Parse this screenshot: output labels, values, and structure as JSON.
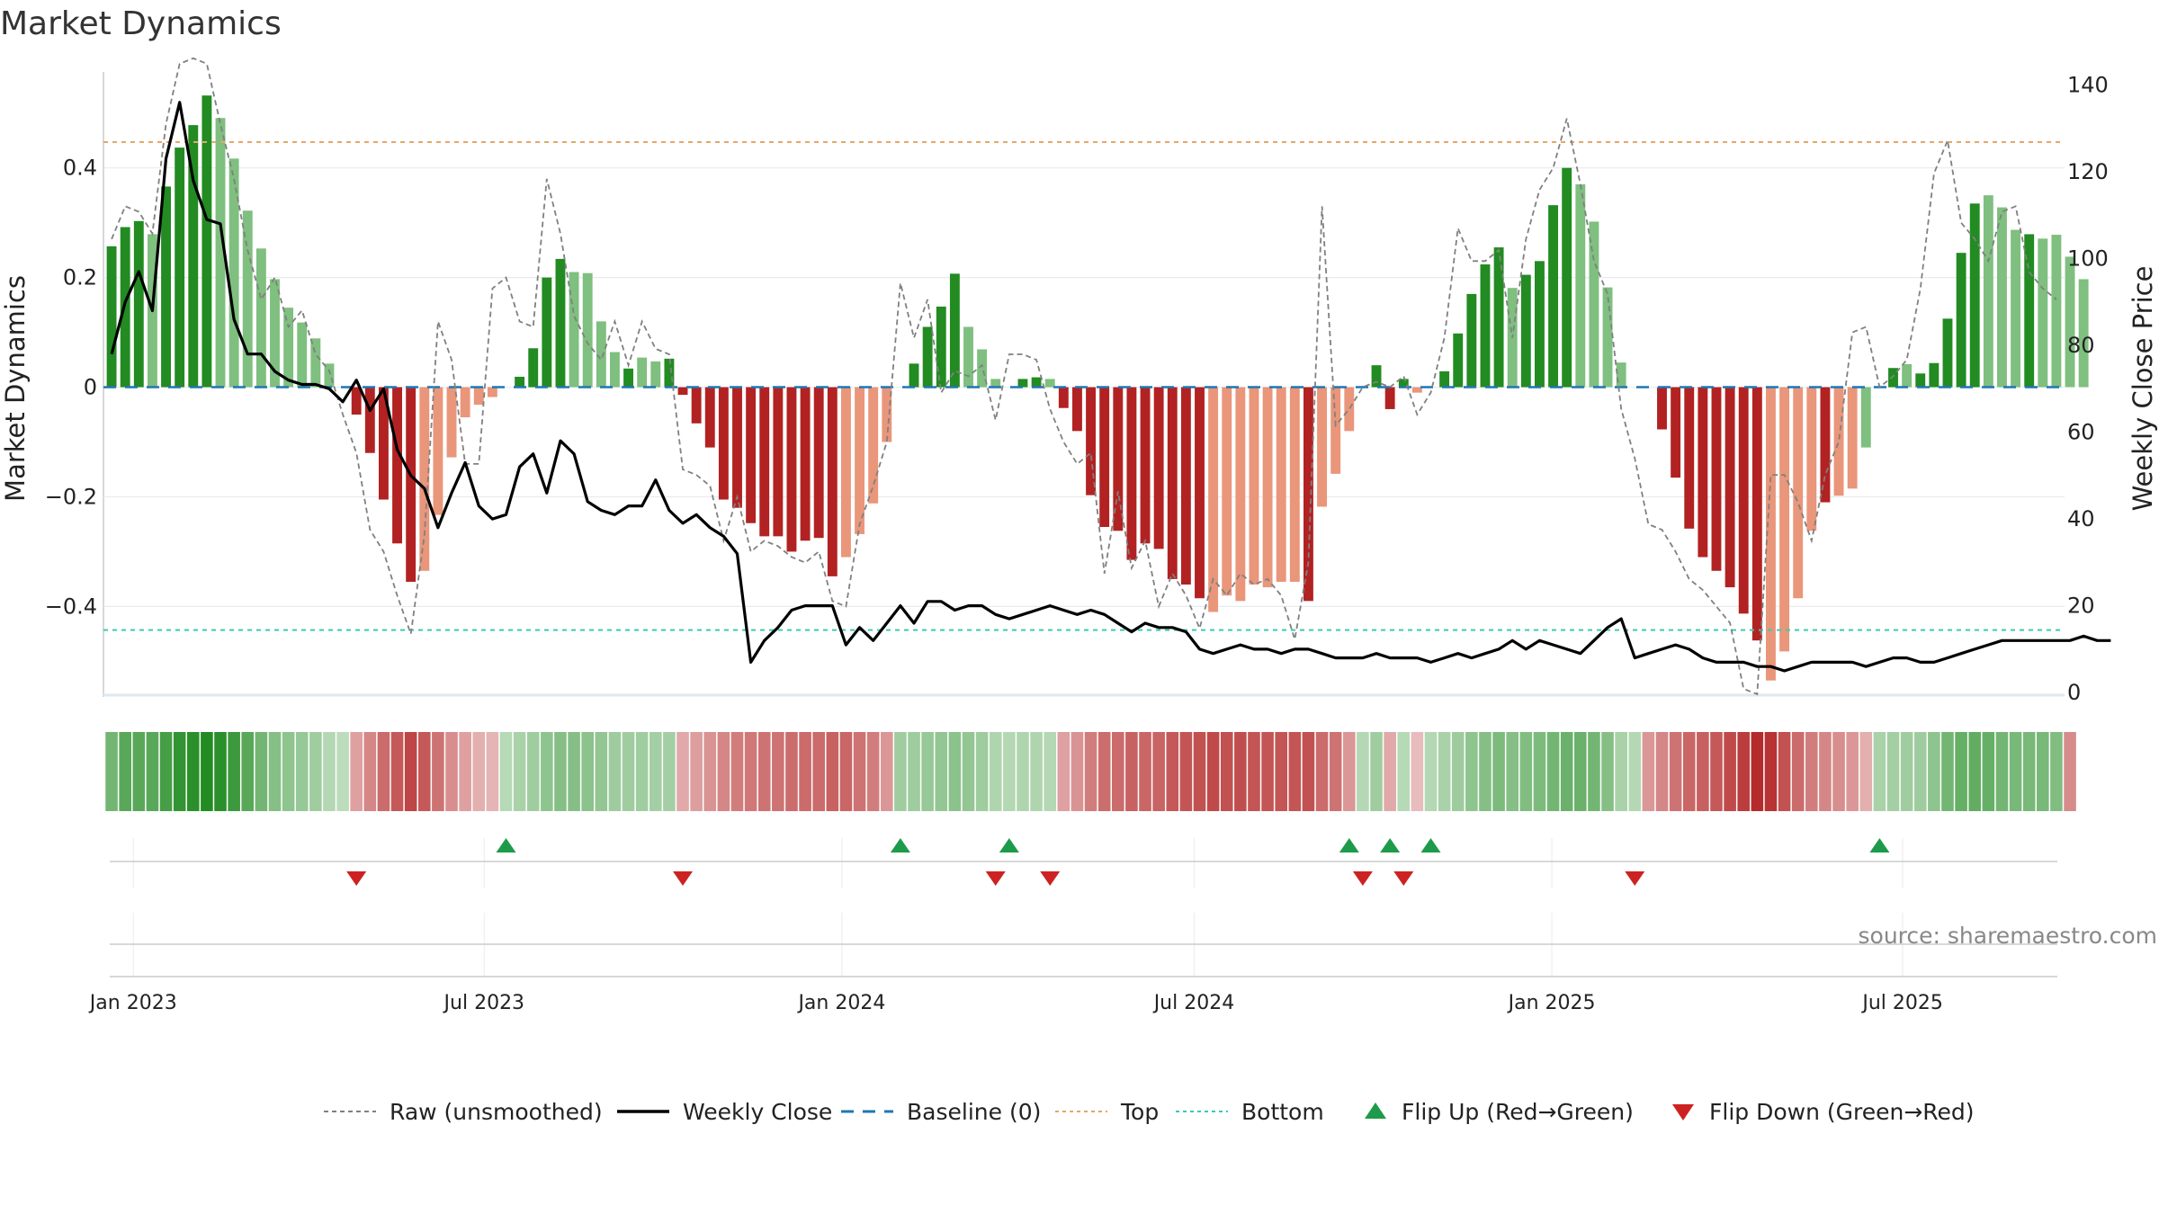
{
  "title": "Market Dynamics",
  "colors": {
    "green_dark": "#228b22",
    "green_light": "#7fbf7f",
    "red_dark": "#b22222",
    "red_light": "#e9967a",
    "close_line": "#000000",
    "raw_line": "#808080",
    "baseline": "#1f77b4",
    "top_line": "#e3a86b",
    "bottom_line": "#3cc9b4",
    "flip_up": "#1e9b4a",
    "flip_down": "#cc2222"
  },
  "chart_data": {
    "type": "bar",
    "title": "Market Dynamics",
    "ylabel": "Market Dynamics",
    "y2label": "Weekly Close Price",
    "ylim": [
      -0.565,
      0.575
    ],
    "y2lim": [
      -1,
      143
    ],
    "yticks": [
      0.4,
      0.2,
      0,
      -0.2,
      -0.4
    ],
    "ytick_labels": [
      "0.4",
      "0.2",
      "0",
      "−0.2",
      "−0.4"
    ],
    "y2ticks": [
      140,
      120,
      100,
      80,
      60,
      40,
      20,
      0
    ],
    "y2tick_labels": [
      "140",
      "120",
      "100",
      "80",
      "60",
      "40",
      "20",
      "0"
    ],
    "x_domain": [
      -0.6,
      143.6
    ],
    "x_ticks": [
      {
        "week": 1.6,
        "label": "Jan 2023"
      },
      {
        "week": 27.4,
        "label": "Jul 2023"
      },
      {
        "week": 53.7,
        "label": "Jan 2024"
      },
      {
        "week": 79.6,
        "label": "Jul 2024"
      },
      {
        "week": 105.9,
        "label": "Jan 2025"
      },
      {
        "week": 131.7,
        "label": "Jul 2025"
      }
    ],
    "top_level": 0.447,
    "bottom_level": -0.443,
    "baseline": 0,
    "bars": [
      0.257,
      0.292,
      0.303,
      0.279,
      0.366,
      0.437,
      0.478,
      0.532,
      0.491,
      0.417,
      0.322,
      0.253,
      0.197,
      0.145,
      0.118,
      0.089,
      0.043,
      0.0,
      -0.05,
      -0.12,
      -0.205,
      -0.285,
      -0.355,
      -0.335,
      -0.233,
      -0.128,
      -0.055,
      -0.032,
      -0.018,
      0.0,
      0.019,
      0.071,
      0.2,
      0.234,
      0.21,
      0.208,
      0.12,
      0.064,
      0.034,
      0.054,
      0.047,
      0.052,
      -0.014,
      -0.066,
      -0.11,
      -0.205,
      -0.22,
      -0.248,
      -0.272,
      -0.272,
      -0.3,
      -0.28,
      -0.275,
      -0.345,
      -0.31,
      -0.268,
      -0.212,
      -0.1,
      0.0,
      0.043,
      0.11,
      0.147,
      0.207,
      0.11,
      0.069,
      0.015,
      0.0,
      0.015,
      0.018,
      0.015,
      -0.038,
      -0.08,
      -0.197,
      -0.255,
      -0.262,
      -0.315,
      -0.285,
      -0.295,
      -0.35,
      -0.36,
      -0.385,
      -0.41,
      -0.38,
      -0.39,
      -0.36,
      -0.365,
      -0.355,
      -0.355,
      -0.39,
      -0.218,
      -0.158,
      -0.08,
      0.0,
      0.04,
      -0.04,
      0.015,
      -0.01,
      0.0,
      0.029,
      0.098,
      0.17,
      0.224,
      0.255,
      0.181,
      0.205,
      0.23,
      0.332,
      0.4,
      0.37,
      0.302,
      0.182,
      0.045,
      0.0,
      0.0,
      -0.077,
      -0.165,
      -0.258,
      -0.31,
      -0.335,
      -0.365,
      -0.413,
      -0.462,
      -0.535,
      -0.482,
      -0.385,
      -0.262,
      -0.21,
      -0.198,
      -0.185,
      -0.11,
      0.0,
      0.035,
      0.042,
      0.025,
      0.044,
      0.125,
      0.245,
      0.335,
      0.35,
      0.328,
      0.287,
      0.279,
      0.271,
      0.278,
      0.238,
      0.197
    ],
    "bar_colors": [
      "gd",
      "gd",
      "gd",
      "gl",
      "gd",
      "gd",
      "gd",
      "gd",
      "gl",
      "gl",
      "gl",
      "gl",
      "gl",
      "gl",
      "gl",
      "gl",
      "gl",
      "gl",
      "rd",
      "rd",
      "rd",
      "rd",
      "rd",
      "rl",
      "rl",
      "rl",
      "rl",
      "rl",
      "rl",
      "gl",
      "gd",
      "gd",
      "gd",
      "gd",
      "gl",
      "gl",
      "gl",
      "gl",
      "gd",
      "gl",
      "gl",
      "gd",
      "rd",
      "rd",
      "rd",
      "rd",
      "rd",
      "rd",
      "rd",
      "rd",
      "rd",
      "rd",
      "rd",
      "rd",
      "rl",
      "rl",
      "rl",
      "rl",
      "gl",
      "gd",
      "gd",
      "gd",
      "gd",
      "gl",
      "gl",
      "gl",
      "gl",
      "gd",
      "gd",
      "gl",
      "rd",
      "rd",
      "rd",
      "rd",
      "rd",
      "rd",
      "rd",
      "rd",
      "rd",
      "rd",
      "rd",
      "rl",
      "rl",
      "rl",
      "rl",
      "rl",
      "rl",
      "rl",
      "rd",
      "rl",
      "rl",
      "rl",
      "gl",
      "gd",
      "rd",
      "gd",
      "rl",
      "gl",
      "gd",
      "gd",
      "gd",
      "gd",
      "gd",
      "gl",
      "gd",
      "gd",
      "gd",
      "gd",
      "gl",
      "gl",
      "gl",
      "gl",
      "gl",
      "rd",
      "rd",
      "rd",
      "rd",
      "rd",
      "rd",
      "rd",
      "rd",
      "rd",
      "rl",
      "rl",
      "rl",
      "rl",
      "rd",
      "rl",
      "rl",
      "gl",
      "gd",
      "gd",
      "gl",
      "gd",
      "gd",
      "gd",
      "gd",
      "gd",
      "gl",
      "gl",
      "gl",
      "gd",
      "gl",
      "gl"
    ],
    "raw": [
      0.27,
      0.33,
      0.32,
      0.28,
      0.48,
      0.59,
      0.6,
      0.59,
      0.48,
      0.38,
      0.25,
      0.16,
      0.2,
      0.11,
      0.14,
      0.06,
      0.03,
      -0.05,
      -0.12,
      -0.26,
      -0.3,
      -0.38,
      -0.45,
      -0.27,
      0.12,
      0.05,
      -0.14,
      -0.14,
      0.18,
      0.2,
      0.12,
      0.11,
      0.38,
      0.28,
      0.13,
      0.08,
      0.05,
      0.12,
      0.04,
      0.12,
      0.07,
      0.06,
      -0.15,
      -0.16,
      -0.18,
      -0.28,
      -0.2,
      -0.3,
      -0.28,
      -0.29,
      -0.31,
      -0.32,
      -0.3,
      -0.39,
      -0.4,
      -0.25,
      -0.18,
      -0.1,
      0.19,
      0.09,
      0.16,
      -0.01,
      0.03,
      0.02,
      0.04,
      -0.06,
      0.06,
      0.06,
      0.05,
      -0.04,
      -0.1,
      -0.14,
      -0.12,
      -0.34,
      -0.19,
      -0.33,
      -0.28,
      -0.4,
      -0.34,
      -0.38,
      -0.44,
      -0.35,
      -0.38,
      -0.34,
      -0.36,
      -0.35,
      -0.38,
      -0.46,
      -0.32,
      0.33,
      -0.07,
      -0.04,
      0.0,
      0.01,
      0.0,
      0.02,
      -0.05,
      -0.01,
      0.09,
      0.29,
      0.23,
      0.23,
      0.25,
      0.09,
      0.27,
      0.36,
      0.4,
      0.49,
      0.37,
      0.23,
      0.17,
      -0.04,
      -0.13,
      -0.25,
      -0.26,
      -0.3,
      -0.35,
      -0.37,
      -0.4,
      -0.43,
      -0.55,
      -0.56,
      -0.16,
      -0.16,
      -0.21,
      -0.28,
      -0.16,
      -0.1,
      0.1,
      0.11,
      0.0,
      0.02,
      0.05,
      0.18,
      0.39,
      0.45,
      0.3,
      0.27,
      0.23,
      0.32,
      0.33,
      0.21,
      0.18,
      0.16
    ],
    "close": [
      78,
      90,
      97,
      88,
      123,
      136,
      118,
      109,
      108,
      86,
      78,
      78,
      74,
      72,
      71,
      71,
      70,
      67,
      72,
      65,
      70,
      56,
      50,
      47,
      38,
      46,
      53,
      43,
      40,
      41,
      52,
      55,
      46,
      58,
      55,
      44,
      42,
      41,
      43,
      43,
      49,
      42,
      39,
      41,
      38,
      36,
      32,
      7,
      12,
      15,
      19,
      20,
      20,
      20,
      11,
      15,
      12,
      16,
      20,
      16,
      21,
      21,
      19,
      20,
      20,
      18,
      17,
      18,
      19,
      20,
      19,
      18,
      19,
      18,
      16,
      14,
      16,
      15,
      15,
      14,
      10,
      9,
      10,
      11,
      10,
      10,
      9,
      10,
      10,
      9,
      8,
      8,
      8,
      9,
      8,
      8,
      8,
      7,
      8,
      9,
      8,
      9,
      10,
      12,
      10,
      12,
      11,
      10,
      9,
      12,
      15,
      17,
      8,
      9,
      10,
      11,
      10,
      8,
      7,
      7,
      7,
      6,
      6,
      5,
      6,
      7,
      7,
      7,
      7,
      6,
      7,
      8,
      8,
      7,
      7,
      8,
      9,
      10,
      11,
      12,
      12,
      12,
      12,
      12,
      12,
      13,
      12,
      12
    ],
    "heat_levels": [
      0.55,
      0.7,
      0.7,
      0.7,
      0.8,
      0.9,
      0.95,
      1.0,
      0.95,
      0.85,
      0.7,
      0.55,
      0.45,
      0.4,
      0.35,
      0.3,
      0.2,
      0.15,
      0.3,
      0.45,
      0.6,
      0.7,
      0.8,
      0.7,
      0.55,
      0.4,
      0.3,
      0.22,
      0.2,
      0.18,
      0.25,
      0.3,
      0.4,
      0.45,
      0.45,
      0.42,
      0.38,
      0.32,
      0.3,
      0.3,
      0.28,
      0.28,
      0.25,
      0.32,
      0.38,
      0.45,
      0.5,
      0.52,
      0.55,
      0.55,
      0.58,
      0.6,
      0.6,
      0.65,
      0.62,
      0.55,
      0.5,
      0.35,
      0.3,
      0.32,
      0.35,
      0.38,
      0.42,
      0.38,
      0.32,
      0.22,
      0.2,
      0.22,
      0.22,
      0.2,
      0.3,
      0.38,
      0.5,
      0.58,
      0.6,
      0.65,
      0.62,
      0.63,
      0.7,
      0.72,
      0.75,
      0.78,
      0.75,
      0.76,
      0.72,
      0.72,
      0.72,
      0.72,
      0.75,
      0.6,
      0.55,
      0.35,
      0.2,
      0.3,
      0.25,
      0.18,
      0.15,
      0.2,
      0.25,
      0.32,
      0.4,
      0.45,
      0.5,
      0.45,
      0.48,
      0.5,
      0.55,
      0.6,
      0.6,
      0.55,
      0.45,
      0.25,
      0.2,
      0.35,
      0.45,
      0.55,
      0.62,
      0.66,
      0.7,
      0.78,
      0.85,
      0.95,
      0.9,
      0.75,
      0.6,
      0.5,
      0.45,
      0.4,
      0.35,
      0.22,
      0.25,
      0.28,
      0.3,
      0.32,
      0.4,
      0.55,
      0.62,
      0.65,
      0.62,
      0.55,
      0.52,
      0.52,
      0.52,
      0.48,
      0.42
    ],
    "heat_signs": [
      "g",
      "g",
      "g",
      "g",
      "g",
      "g",
      "g",
      "g",
      "g",
      "g",
      "g",
      "g",
      "g",
      "g",
      "g",
      "g",
      "g",
      "g",
      "r",
      "r",
      "r",
      "r",
      "r",
      "r",
      "r",
      "r",
      "r",
      "r",
      "r",
      "g",
      "g",
      "g",
      "g",
      "g",
      "g",
      "g",
      "g",
      "g",
      "g",
      "g",
      "g",
      "g",
      "r",
      "r",
      "r",
      "r",
      "r",
      "r",
      "r",
      "r",
      "r",
      "r",
      "r",
      "r",
      "r",
      "r",
      "r",
      "r",
      "g",
      "g",
      "g",
      "g",
      "g",
      "g",
      "g",
      "g",
      "g",
      "g",
      "g",
      "g",
      "r",
      "r",
      "r",
      "r",
      "r",
      "r",
      "r",
      "r",
      "r",
      "r",
      "r",
      "r",
      "r",
      "r",
      "r",
      "r",
      "r",
      "r",
      "r",
      "r",
      "r",
      "r",
      "g",
      "g",
      "r",
      "g",
      "r",
      "g",
      "g",
      "g",
      "g",
      "g",
      "g",
      "g",
      "g",
      "g",
      "g",
      "g",
      "g",
      "g",
      "g",
      "g",
      "g",
      "r",
      "r",
      "r",
      "r",
      "r",
      "r",
      "r",
      "r",
      "r",
      "r",
      "r",
      "r",
      "r",
      "r",
      "r",
      "r",
      "r",
      "g",
      "g",
      "g",
      "g",
      "g",
      "g",
      "g",
      "g",
      "g",
      "g",
      "g",
      "g",
      "g",
      "g"
    ],
    "flip_up_weeks": [
      29,
      58,
      66,
      91,
      94,
      97,
      130
    ],
    "flip_down_weeks": [
      18,
      42,
      65,
      69,
      92,
      95,
      112
    ],
    "legend": [
      {
        "label": "Raw (unsmoothed)",
        "style": "raw"
      },
      {
        "label": "Weekly Close",
        "style": "close"
      },
      {
        "label": "Baseline (0)",
        "style": "baseline"
      },
      {
        "label": "Top",
        "style": "top"
      },
      {
        "label": "Bottom",
        "style": "bottom"
      },
      {
        "label": "Flip Up (Red→Green)",
        "style": "flip_up"
      },
      {
        "label": "Flip Down (Green→Red)",
        "style": "flip_down"
      }
    ],
    "legend_position": "bottom-center"
  },
  "source_text": "source: sharemaestro.com"
}
